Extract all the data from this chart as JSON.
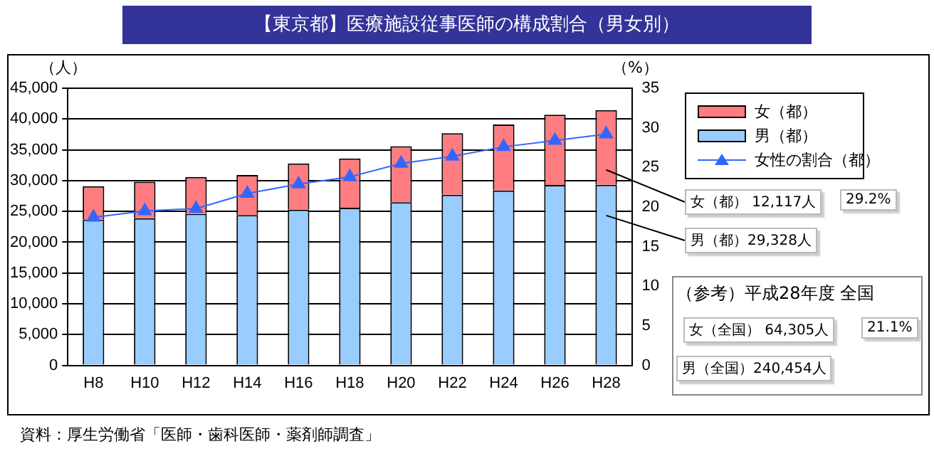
{
  "chart_data": {
    "type": "bar",
    "stacked": true,
    "title": "【東京都】医療施設従事医師の構成割合（男女別）",
    "ylabel": "（人）",
    "y2label": "（%）",
    "categories": [
      "H8",
      "H10",
      "H12",
      "H14",
      "H16",
      "H18",
      "H20",
      "H22",
      "H24",
      "H26",
      "H28"
    ],
    "series": [
      {
        "name": "男（都）",
        "color": "#99ccff",
        "values": [
          23700,
          23900,
          24600,
          24400,
          25300,
          25600,
          26500,
          27700,
          28400,
          29300,
          29328
        ]
      },
      {
        "name": "女（都）",
        "color": "#ff7c80",
        "values": [
          5400,
          5900,
          6000,
          6500,
          7500,
          8000,
          9100,
          10000,
          10700,
          11400,
          12117
        ]
      },
      {
        "name": "女性の割合（都）",
        "type": "line",
        "axis": "y2",
        "color": "#3366ff",
        "marker": "triangle",
        "values": [
          18.7,
          19.5,
          19.8,
          21.7,
          22.9,
          23.8,
          25.5,
          26.4,
          27.6,
          28.4,
          29.2
        ]
      }
    ],
    "ylim": [
      0,
      45000
    ],
    "yticks": [
      {
        "value": 0,
        "label": "0"
      },
      {
        "value": 5000,
        "label": "5,000"
      },
      {
        "value": 10000,
        "label": "10,000"
      },
      {
        "value": 15000,
        "label": "15,000"
      },
      {
        "value": 20000,
        "label": "20,000"
      },
      {
        "value": 25000,
        "label": "25,000"
      },
      {
        "value": 30000,
        "label": "30,000"
      },
      {
        "value": 35000,
        "label": "35,000"
      },
      {
        "value": 40000,
        "label": "40,000"
      },
      {
        "value": 45000,
        "label": "45,000"
      }
    ],
    "y2lim": [
      0,
      35
    ],
    "y2ticks": [
      0,
      5,
      10,
      15,
      20,
      25,
      30,
      35
    ],
    "grid": "y",
    "legend": "top right",
    "annotations": [
      "女（都） 12,117人",
      "29.2%",
      "男（都）29,328人",
      "（参考）平成28年度 全国",
      "女（全国） 64,305人",
      "21.1%",
      "男（全国）240,454人",
      "資料：厚生労働省「医師・歯科医師・薬剤師調査」"
    ]
  }
}
